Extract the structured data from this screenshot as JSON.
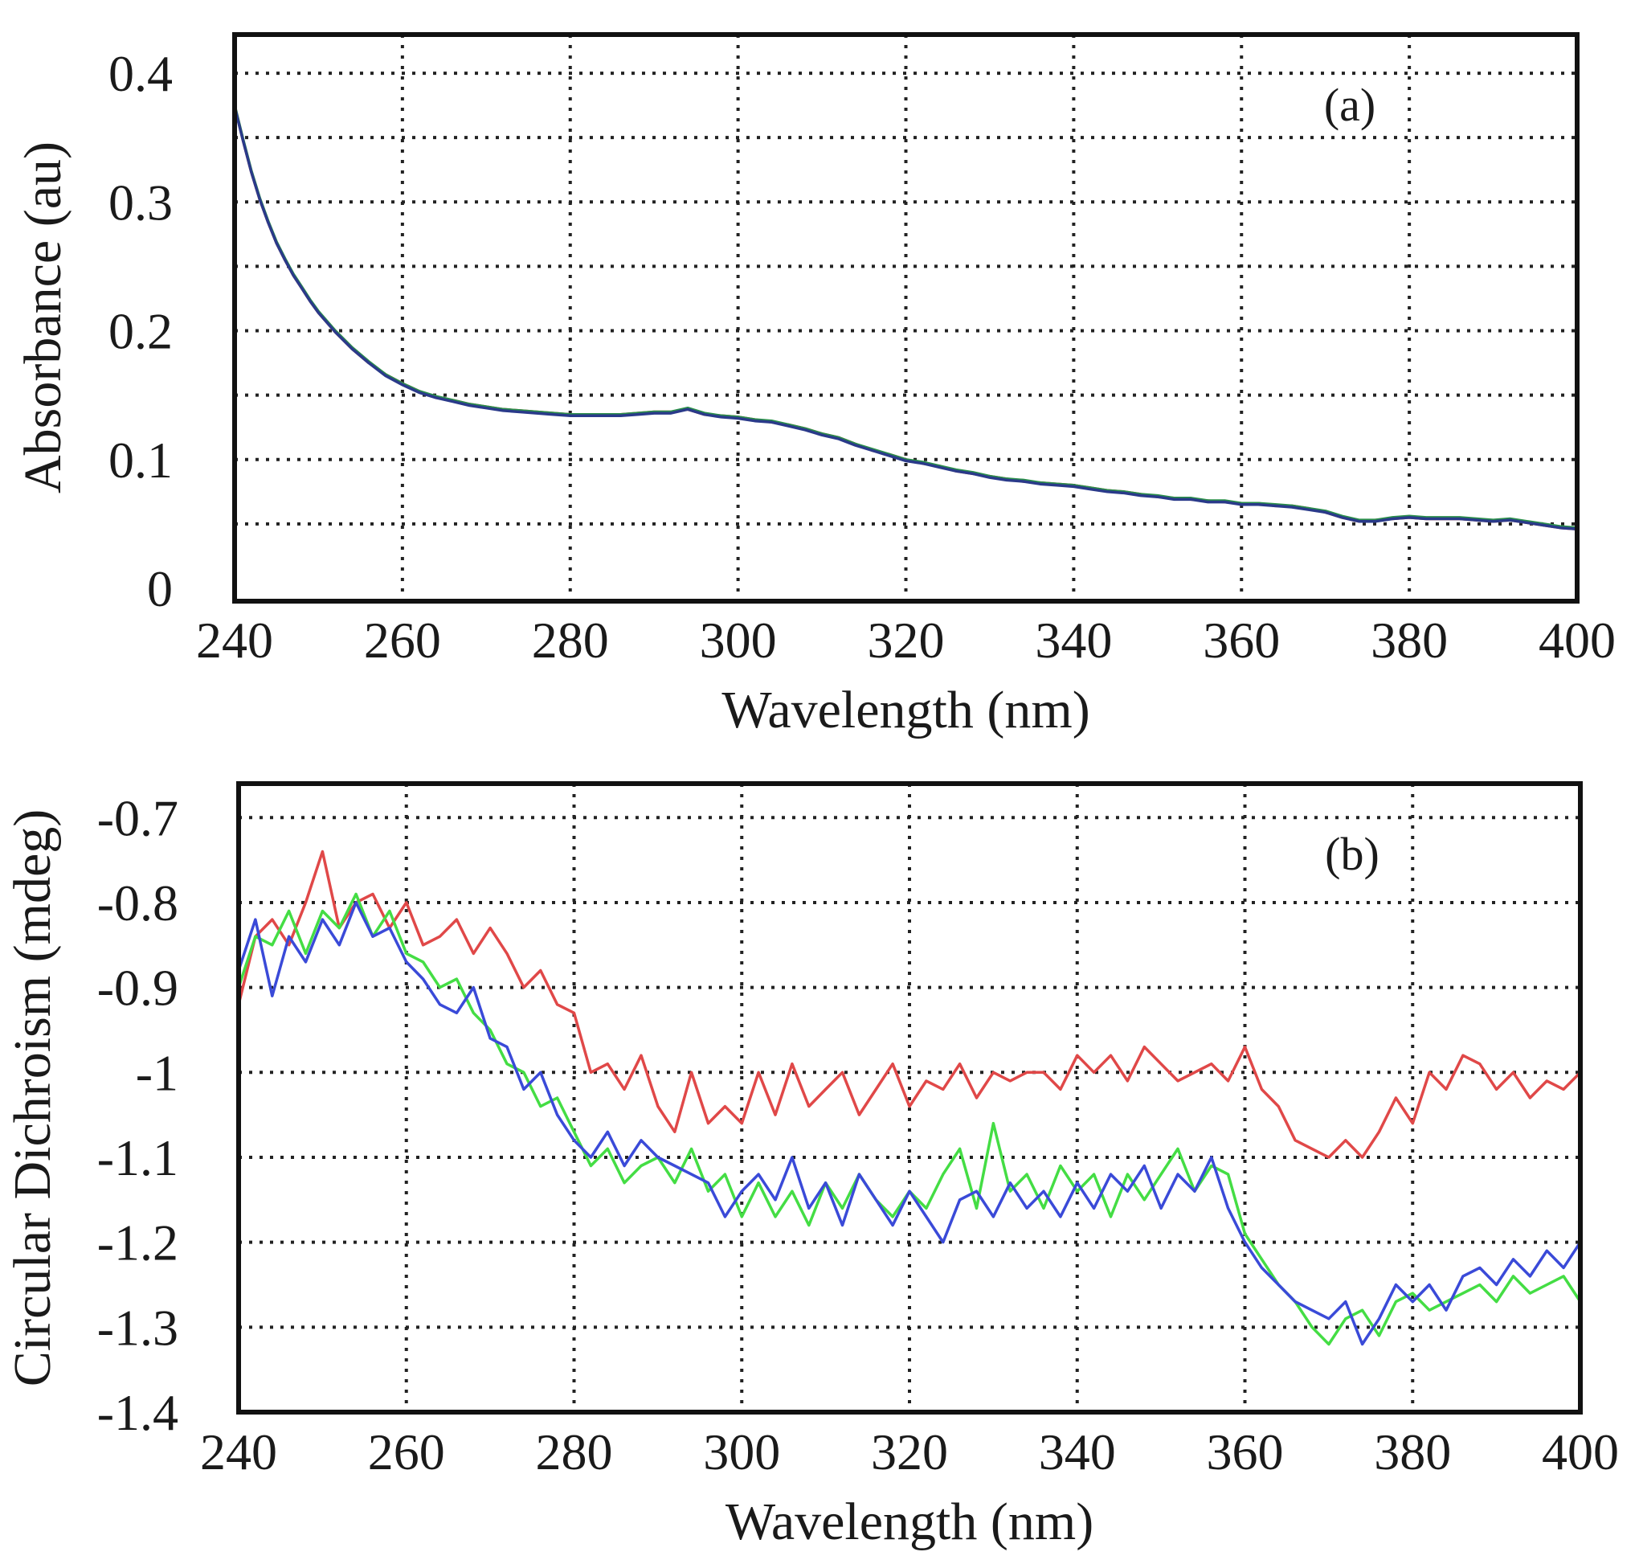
{
  "chart_data": [
    {
      "type": "line",
      "panel_label": "(a)",
      "xlabel": "Wavelength (nm)",
      "ylabel": "Absorbance (au)",
      "xlim": [
        240,
        400
      ],
      "ylim": [
        -0.01,
        0.43
      ],
      "x_ticks": [
        240,
        260,
        280,
        300,
        320,
        340,
        360,
        380,
        400
      ],
      "y_ticks": [
        0,
        0.1,
        0.2,
        0.3,
        0.4
      ],
      "y_tick_labels": [
        "0",
        "0.1",
        "0.2",
        "0.3",
        "0.4"
      ],
      "x_grid": [
        240,
        260,
        280,
        300,
        320,
        340,
        360,
        380,
        400
      ],
      "y_grid": [
        0.05,
        0.1,
        0.15,
        0.2,
        0.25,
        0.3,
        0.35,
        0.4
      ],
      "grid": true,
      "grid_style": "dotted",
      "x": [
        240,
        241,
        242,
        243,
        244,
        245,
        246,
        247,
        248,
        249,
        250,
        252,
        254,
        256,
        258,
        260,
        262,
        264,
        266,
        268,
        270,
        272,
        274,
        276,
        278,
        280,
        282,
        284,
        286,
        288,
        290,
        292,
        294,
        296,
        298,
        300,
        302,
        304,
        306,
        308,
        310,
        312,
        314,
        316,
        318,
        320,
        322,
        324,
        326,
        328,
        330,
        332,
        334,
        336,
        338,
        340,
        342,
        344,
        346,
        348,
        350,
        352,
        354,
        356,
        358,
        360,
        362,
        364,
        366,
        368,
        370,
        372,
        374,
        376,
        378,
        380,
        382,
        384,
        386,
        388,
        390,
        392,
        394,
        396,
        398,
        400
      ],
      "series": [
        {
          "color": "#d03030",
          "values": [
            0.375,
            0.348,
            0.323,
            0.302,
            0.284,
            0.268,
            0.255,
            0.243,
            0.233,
            0.223,
            0.214,
            0.199,
            0.186,
            0.175,
            0.166,
            0.159,
            0.153,
            0.148,
            0.146,
            0.143,
            0.141,
            0.139,
            0.138,
            0.137,
            0.136,
            0.135,
            0.135,
            0.134,
            0.135,
            0.136,
            0.137,
            0.137,
            0.139,
            0.135,
            0.134,
            0.133,
            0.131,
            0.129,
            0.127,
            0.124,
            0.12,
            0.117,
            0.112,
            0.107,
            0.104,
            0.1,
            0.097,
            0.095,
            0.091,
            0.089,
            0.087,
            0.085,
            0.083,
            0.082,
            0.081,
            0.08,
            0.078,
            0.076,
            0.075,
            0.073,
            0.071,
            0.07,
            0.069,
            0.068,
            0.067,
            0.066,
            0.066,
            0.064,
            0.064,
            0.062,
            0.059,
            0.055,
            0.052,
            0.053,
            0.054,
            0.055,
            0.054,
            0.054,
            0.054,
            0.053,
            0.052,
            0.053,
            0.051,
            0.049,
            0.047,
            0.046
          ]
        },
        {
          "color": "#2a8f4a",
          "values": [
            0.375,
            0.349,
            0.324,
            0.303,
            0.285,
            0.269,
            0.256,
            0.244,
            0.234,
            0.224,
            0.215,
            0.2,
            0.187,
            0.176,
            0.166,
            0.159,
            0.153,
            0.149,
            0.146,
            0.143,
            0.141,
            0.139,
            0.138,
            0.137,
            0.136,
            0.135,
            0.135,
            0.135,
            0.135,
            0.136,
            0.137,
            0.137,
            0.14,
            0.136,
            0.134,
            0.133,
            0.131,
            0.13,
            0.127,
            0.124,
            0.12,
            0.117,
            0.112,
            0.108,
            0.104,
            0.1,
            0.098,
            0.095,
            0.092,
            0.09,
            0.087,
            0.085,
            0.084,
            0.082,
            0.081,
            0.08,
            0.078,
            0.076,
            0.075,
            0.073,
            0.072,
            0.07,
            0.07,
            0.068,
            0.068,
            0.066,
            0.066,
            0.065,
            0.064,
            0.062,
            0.06,
            0.056,
            0.053,
            0.053,
            0.055,
            0.056,
            0.055,
            0.055,
            0.055,
            0.054,
            0.053,
            0.054,
            0.052,
            0.05,
            0.048,
            0.047
          ]
        },
        {
          "color": "#2a3a8a",
          "values": [
            0.374,
            0.348,
            0.323,
            0.302,
            0.284,
            0.268,
            0.255,
            0.243,
            0.233,
            0.223,
            0.214,
            0.199,
            0.186,
            0.175,
            0.165,
            0.158,
            0.152,
            0.148,
            0.145,
            0.142,
            0.14,
            0.138,
            0.137,
            0.136,
            0.135,
            0.134,
            0.134,
            0.134,
            0.134,
            0.135,
            0.136,
            0.136,
            0.139,
            0.135,
            0.133,
            0.132,
            0.13,
            0.129,
            0.126,
            0.123,
            0.119,
            0.116,
            0.111,
            0.107,
            0.103,
            0.099,
            0.097,
            0.094,
            0.091,
            0.089,
            0.086,
            0.084,
            0.083,
            0.081,
            0.08,
            0.079,
            0.077,
            0.075,
            0.074,
            0.072,
            0.071,
            0.069,
            0.069,
            0.067,
            0.067,
            0.065,
            0.065,
            0.064,
            0.063,
            0.061,
            0.059,
            0.055,
            0.052,
            0.052,
            0.054,
            0.055,
            0.054,
            0.054,
            0.054,
            0.053,
            0.052,
            0.053,
            0.051,
            0.049,
            0.047,
            0.046
          ]
        }
      ]
    },
    {
      "type": "line",
      "panel_label": "(b)",
      "xlabel": "Wavelength (nm)",
      "ylabel": "Circular Dichroism (mdeg)",
      "xlim": [
        240,
        400
      ],
      "ylim": [
        -1.4,
        -0.66
      ],
      "x_ticks": [
        240,
        260,
        280,
        300,
        320,
        340,
        360,
        380,
        400
      ],
      "y_ticks": [
        -0.7,
        -0.8,
        -0.9,
        -1,
        -1.1,
        -1.2,
        -1.3,
        -1.4
      ],
      "y_tick_labels": [
        "-0.7",
        "-0.8",
        "-0.9",
        "-1",
        "-1.1",
        "-1.2",
        "-1.3",
        "-1.4"
      ],
      "x_grid": [
        240,
        260,
        280,
        300,
        320,
        340,
        360,
        380,
        400
      ],
      "y_grid": [
        -0.7,
        -0.8,
        -0.9,
        -1,
        -1.1,
        -1.2,
        -1.3,
        -1.4
      ],
      "grid": true,
      "grid_style": "dotted",
      "x": [
        240,
        242,
        244,
        246,
        248,
        250,
        252,
        254,
        256,
        258,
        260,
        262,
        264,
        266,
        268,
        270,
        272,
        274,
        276,
        278,
        280,
        282,
        284,
        286,
        288,
        290,
        292,
        294,
        296,
        298,
        300,
        302,
        304,
        306,
        308,
        310,
        312,
        314,
        316,
        318,
        320,
        322,
        324,
        326,
        328,
        330,
        332,
        334,
        336,
        338,
        340,
        342,
        344,
        346,
        348,
        350,
        352,
        354,
        356,
        358,
        360,
        362,
        364,
        366,
        368,
        370,
        372,
        374,
        376,
        378,
        380,
        382,
        384,
        386,
        388,
        390,
        392,
        394,
        396,
        398,
        400
      ],
      "series": [
        {
          "color": "#e04848",
          "values": [
            -0.92,
            -0.84,
            -0.82,
            -0.85,
            -0.8,
            -0.74,
            -0.83,
            -0.8,
            -0.79,
            -0.83,
            -0.8,
            -0.85,
            -0.84,
            -0.82,
            -0.86,
            -0.83,
            -0.86,
            -0.9,
            -0.88,
            -0.92,
            -0.93,
            -1.0,
            -0.99,
            -1.02,
            -0.98,
            -1.04,
            -1.07,
            -1.0,
            -1.06,
            -1.04,
            -1.06,
            -1.0,
            -1.05,
            -0.99,
            -1.04,
            -1.02,
            -1.0,
            -1.05,
            -1.02,
            -0.99,
            -1.04,
            -1.01,
            -1.02,
            -0.99,
            -1.03,
            -1.0,
            -1.01,
            -1.0,
            -1.0,
            -1.02,
            -0.98,
            -1.0,
            -0.98,
            -1.01,
            -0.97,
            -0.99,
            -1.01,
            -1.0,
            -0.99,
            -1.01,
            -0.97,
            -1.02,
            -1.04,
            -1.08,
            -1.09,
            -1.1,
            -1.08,
            -1.1,
            -1.07,
            -1.03,
            -1.06,
            -1.0,
            -1.02,
            -0.98,
            -0.99,
            -1.02,
            -1.0,
            -1.03,
            -1.01,
            -1.02,
            -1.0
          ]
        },
        {
          "color": "#44dd44",
          "values": [
            -0.9,
            -0.84,
            -0.85,
            -0.81,
            -0.86,
            -0.81,
            -0.83,
            -0.79,
            -0.84,
            -0.81,
            -0.86,
            -0.87,
            -0.9,
            -0.89,
            -0.93,
            -0.95,
            -0.99,
            -1.0,
            -1.04,
            -1.03,
            -1.07,
            -1.11,
            -1.09,
            -1.13,
            -1.11,
            -1.1,
            -1.13,
            -1.09,
            -1.14,
            -1.12,
            -1.17,
            -1.13,
            -1.17,
            -1.14,
            -1.18,
            -1.13,
            -1.16,
            -1.12,
            -1.15,
            -1.17,
            -1.14,
            -1.16,
            -1.12,
            -1.09,
            -1.16,
            -1.06,
            -1.14,
            -1.12,
            -1.16,
            -1.11,
            -1.14,
            -1.12,
            -1.17,
            -1.12,
            -1.15,
            -1.12,
            -1.09,
            -1.14,
            -1.11,
            -1.12,
            -1.19,
            -1.22,
            -1.25,
            -1.27,
            -1.3,
            -1.32,
            -1.29,
            -1.28,
            -1.31,
            -1.27,
            -1.26,
            -1.28,
            -1.27,
            -1.26,
            -1.25,
            -1.27,
            -1.24,
            -1.26,
            -1.25,
            -1.24,
            -1.27
          ]
        },
        {
          "color": "#3a4ad8",
          "values": [
            -0.88,
            -0.82,
            -0.91,
            -0.84,
            -0.87,
            -0.82,
            -0.85,
            -0.8,
            -0.84,
            -0.83,
            -0.87,
            -0.89,
            -0.92,
            -0.93,
            -0.9,
            -0.96,
            -0.97,
            -1.02,
            -1.0,
            -1.05,
            -1.08,
            -1.1,
            -1.07,
            -1.11,
            -1.08,
            -1.1,
            -1.11,
            -1.12,
            -1.13,
            -1.17,
            -1.14,
            -1.12,
            -1.15,
            -1.1,
            -1.16,
            -1.13,
            -1.18,
            -1.12,
            -1.15,
            -1.18,
            -1.14,
            -1.17,
            -1.2,
            -1.15,
            -1.14,
            -1.17,
            -1.13,
            -1.16,
            -1.14,
            -1.17,
            -1.13,
            -1.16,
            -1.12,
            -1.14,
            -1.11,
            -1.16,
            -1.12,
            -1.14,
            -1.1,
            -1.16,
            -1.2,
            -1.23,
            -1.25,
            -1.27,
            -1.28,
            -1.29,
            -1.27,
            -1.32,
            -1.29,
            -1.25,
            -1.27,
            -1.25,
            -1.28,
            -1.24,
            -1.23,
            -1.25,
            -1.22,
            -1.24,
            -1.21,
            -1.23,
            -1.2
          ]
        }
      ]
    }
  ]
}
